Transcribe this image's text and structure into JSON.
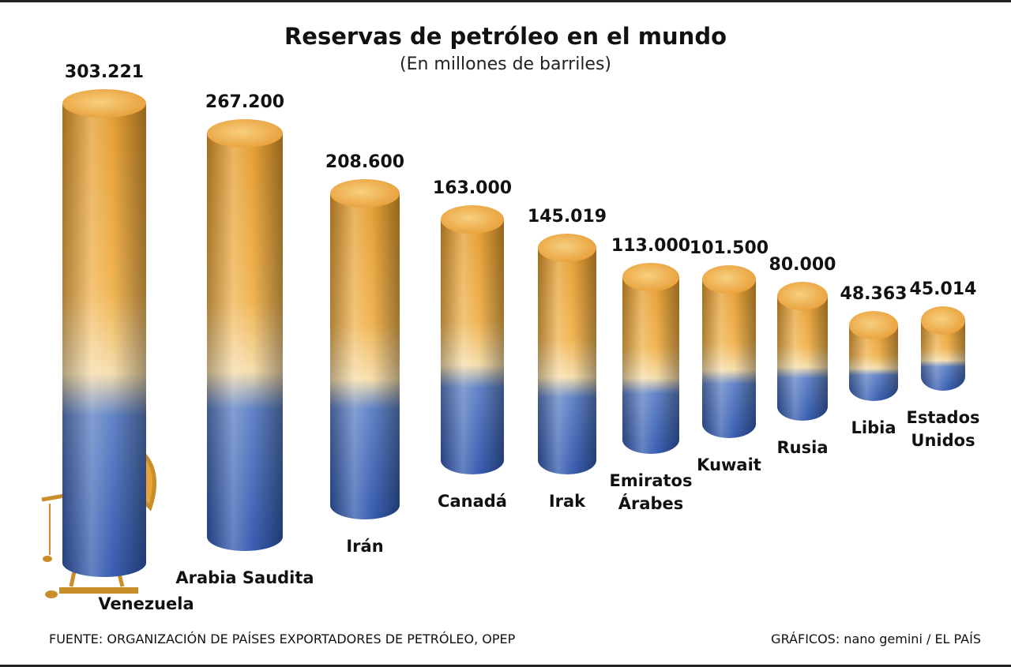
{
  "chart_data": {
    "type": "bar",
    "title": "Reservas de petróleo en el mundo",
    "subtitle": "(En millones de barriles)",
    "categories": [
      "Venezuela",
      "Arabia Saudita",
      "Irán",
      "Canadá",
      "Irak",
      "Emiratos Árabes",
      "Kuwait",
      "Rusia",
      "Libia",
      "Estados Unidos"
    ],
    "values": [
      303221,
      267200,
      208600,
      163000,
      145019,
      113000,
      101500,
      80000,
      48363,
      45014
    ],
    "value_labels": [
      "303.221",
      "267.200",
      "208.600",
      "163.000",
      "145.019",
      "113.000",
      "101.500",
      "80.000",
      "48.363",
      "45.014"
    ],
    "color": "#e39a2a",
    "source": "FUENTE: ORGANIZACIÓN DE PAÍSES EXPORTADORES DE PETRÓLEO, OPEP",
    "credit": "GRÁFICOS: nano gemini / EL PAÍS"
  }
}
